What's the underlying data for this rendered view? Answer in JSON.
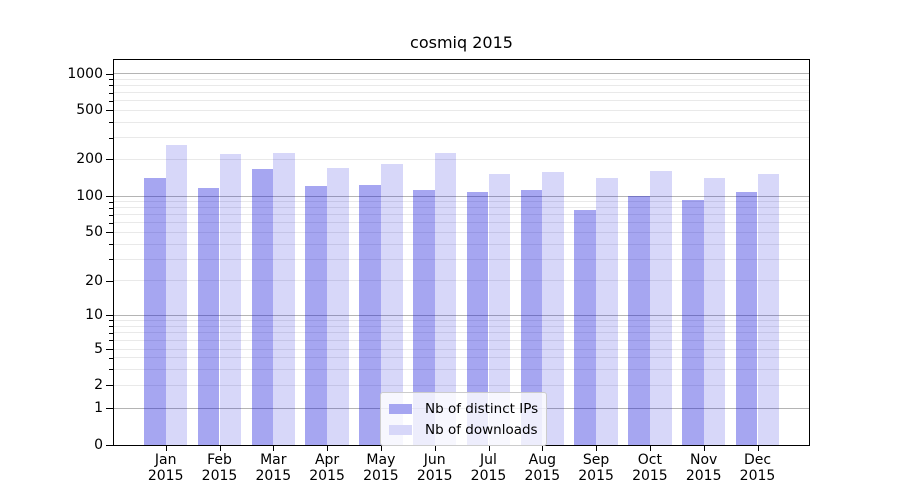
{
  "chart_data": {
    "type": "bar",
    "title": "cosmiq 2015",
    "categories": [
      "Jan",
      "Feb",
      "Mar",
      "Apr",
      "May",
      "Jun",
      "Jul",
      "Aug",
      "Sep",
      "Oct",
      "Nov",
      "Dec"
    ],
    "year": "2015",
    "series": [
      {
        "name": "Nb of distinct IPs",
        "fill": "rgba(8,8,216,0.36)",
        "legend_color": "#a6a6f1",
        "values": [
          140,
          117,
          165,
          121,
          122,
          111,
          108,
          111,
          77,
          100,
          92,
          108
        ]
      },
      {
        "name": "Nb of downloads",
        "fill": "rgba(8,8,216,0.16)",
        "legend_color": "#d7d7f9",
        "values": [
          260,
          220,
          226,
          170,
          183,
          224,
          151,
          157,
          141,
          160,
          140,
          151
        ]
      }
    ],
    "yscale": "log",
    "ylim": [
      0,
      1300
    ],
    "yticks": [
      1000,
      500,
      200,
      100,
      50,
      20,
      10,
      5,
      2,
      1,
      0
    ],
    "grid": "both",
    "legend_position": "lower center",
    "xlabel": "",
    "ylabel": ""
  },
  "colors": {
    "major_grid": "#b4b4b4",
    "minor_grid": "#e9e9e9",
    "spine": "#000000"
  }
}
